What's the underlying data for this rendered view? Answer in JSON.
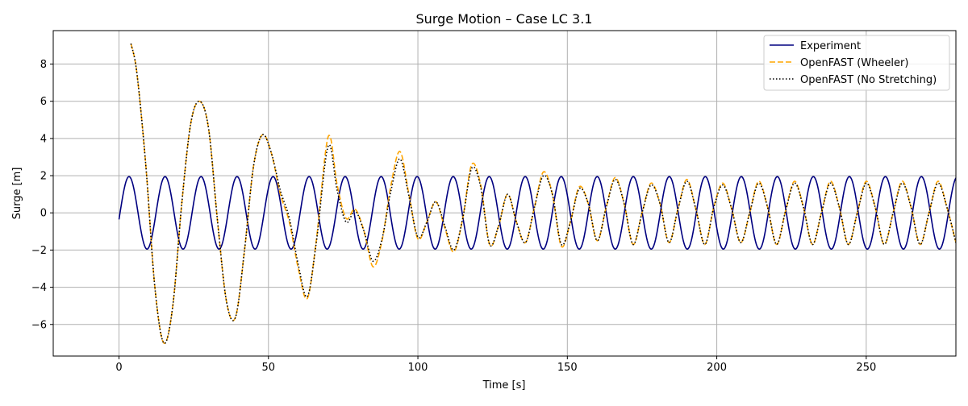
{
  "chart_data": {
    "type": "line",
    "title": "Surge Motion – Case LC 3.1",
    "xlabel": "Time [s]",
    "ylabel": "Surge [m]",
    "xlim": [
      -22,
      280
    ],
    "ylim": [
      -7.7,
      9.8
    ],
    "x_ticks": [
      0,
      50,
      100,
      150,
      200,
      250
    ],
    "x_tick_labels": [
      "0",
      "50",
      "100",
      "150",
      "200",
      "250"
    ],
    "y_ticks": [
      -6,
      -4,
      -2,
      0,
      2,
      4,
      6,
      8
    ],
    "y_tick_labels": [
      "−6",
      "−4",
      "−2",
      "0",
      "2",
      "4",
      "6",
      "8"
    ],
    "grid": true,
    "legend_position": "upper right",
    "series": [
      {
        "name": "Experiment",
        "color": "#000080",
        "style": "solid",
        "description": "Sinusoid, amplitude ~1.95 m, period ~12 s, from t=0 to t=280",
        "x_range": [
          0,
          280
        ],
        "amplitude": 1.95,
        "period": 12.05,
        "start_value": -0.35
      },
      {
        "name": "OpenFAST (Wheeler)",
        "color": "#FFA500",
        "style": "dashed",
        "x": [
          4,
          6,
          9,
          12,
          15,
          18,
          21,
          24,
          27,
          30,
          33,
          36,
          39,
          42,
          45,
          48,
          51,
          54,
          57,
          60,
          63,
          66,
          70,
          73,
          76,
          79,
          82,
          85,
          88,
          91,
          94,
          97,
          100,
          103,
          106,
          109,
          112,
          115,
          118,
          121,
          124,
          127,
          130,
          133,
          136,
          139,
          142,
          145,
          148,
          151,
          154,
          157,
          160,
          163,
          166,
          169,
          172,
          175,
          178,
          181,
          184,
          187,
          190,
          193,
          196,
          199,
          202,
          205,
          208,
          211,
          214,
          217,
          220,
          223,
          226,
          229,
          232,
          235,
          238,
          241,
          244,
          247,
          250,
          253,
          256,
          259,
          262,
          265,
          268,
          271,
          274,
          277,
          280
        ],
        "y": [
          9.1,
          7.5,
          2.5,
          -4.0,
          -7.0,
          -5.0,
          0.5,
          4.8,
          6.0,
          4.5,
          -0.5,
          -4.8,
          -5.6,
          -2.0,
          2.5,
          4.2,
          3.2,
          1.0,
          -0.5,
          -3.0,
          -4.6,
          -1.5,
          4.1,
          1.5,
          -0.3,
          0.2,
          -1.0,
          -2.9,
          -1.5,
          1.5,
          3.3,
          1.0,
          -1.4,
          -0.5,
          0.6,
          -0.8,
          -2.1,
          -0.3,
          2.6,
          1.5,
          -1.7,
          -0.7,
          1.0,
          -0.5,
          -1.6,
          0.3,
          2.2,
          1.0,
          -1.8,
          -0.5,
          1.4,
          0.5,
          -1.5,
          0.3,
          1.9,
          0.5,
          -1.7,
          0.0,
          1.6,
          0.5,
          -1.6,
          0.2,
          1.8,
          0.2,
          -1.7,
          0.3,
          1.6,
          0.2,
          -1.6,
          0.0,
          1.7,
          0.3,
          -1.7,
          0.1,
          1.7,
          0.3,
          -1.7,
          0.0,
          1.7,
          0.3,
          -1.7,
          0.0,
          1.7,
          0.3,
          -1.7,
          0.0,
          1.7,
          0.3,
          -1.7,
          0.0,
          1.7,
          0.3,
          -1.6
        ]
      },
      {
        "name": "OpenFAST (No Stretching)",
        "color": "#000000",
        "style": "dotted",
        "x": [
          4,
          6,
          9,
          12,
          15,
          18,
          21,
          24,
          27,
          30,
          33,
          36,
          39,
          42,
          45,
          48,
          51,
          54,
          57,
          60,
          63,
          66,
          70,
          73,
          76,
          79,
          82,
          85,
          88,
          91,
          94,
          97,
          100,
          103,
          106,
          109,
          112,
          115,
          118,
          121,
          124,
          127,
          130,
          133,
          136,
          139,
          142,
          145,
          148,
          151,
          154,
          157,
          160,
          163,
          166,
          169,
          172,
          175,
          178,
          181,
          184,
          187,
          190,
          193,
          196,
          199,
          202,
          205,
          208,
          211,
          214,
          217,
          220,
          223,
          226,
          229,
          232,
          235,
          238,
          241,
          244,
          247,
          250,
          253,
          256,
          259,
          262,
          265,
          268,
          271,
          274,
          277,
          280
        ],
        "y": [
          9.1,
          7.5,
          2.5,
          -4.0,
          -7.0,
          -5.0,
          0.5,
          4.8,
          6.0,
          4.5,
          -0.5,
          -4.8,
          -5.6,
          -2.0,
          2.5,
          4.2,
          3.2,
          1.2,
          -0.3,
          -2.8,
          -4.5,
          -1.6,
          3.6,
          1.2,
          -0.5,
          0.1,
          -1.0,
          -2.6,
          -1.4,
          1.2,
          2.9,
          0.9,
          -1.3,
          -0.5,
          0.6,
          -0.7,
          -2.0,
          -0.3,
          2.4,
          1.4,
          -1.7,
          -0.7,
          1.0,
          -0.5,
          -1.6,
          0.3,
          2.0,
          1.0,
          -1.7,
          -0.5,
          1.3,
          0.5,
          -1.5,
          0.3,
          1.8,
          0.5,
          -1.7,
          0.0,
          1.5,
          0.5,
          -1.6,
          0.2,
          1.7,
          0.2,
          -1.7,
          0.3,
          1.5,
          0.2,
          -1.6,
          0.0,
          1.6,
          0.3,
          -1.7,
          0.1,
          1.6,
          0.3,
          -1.7,
          0.0,
          1.6,
          0.3,
          -1.7,
          0.0,
          1.6,
          0.3,
          -1.7,
          0.0,
          1.6,
          0.3,
          -1.7,
          0.0,
          1.6,
          0.3,
          -1.6
        ]
      }
    ]
  }
}
